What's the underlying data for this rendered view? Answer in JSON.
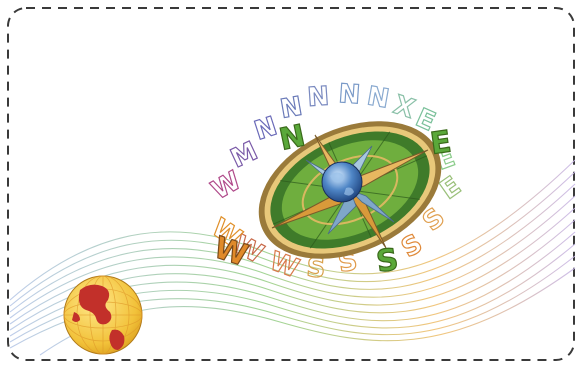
{
  "compass": {
    "north": "N",
    "south": "S",
    "east": "E",
    "west": "W"
  },
  "colors": {
    "frame": "#3a3a3a",
    "compass_ring": "#3f7b2a",
    "compass_outer": "#9a7a3a",
    "star_point": "#d9a24a",
    "star_blue": "#7fa7c9",
    "letter_green": "#5aa83a",
    "letter_orange": "#e08a2a",
    "globe_land": "#c2302a",
    "globe_sea": "#f2c23a"
  },
  "icons": {
    "compass": "compass-rose-icon",
    "globe": "globe-icon",
    "earth": "earth-icon"
  }
}
